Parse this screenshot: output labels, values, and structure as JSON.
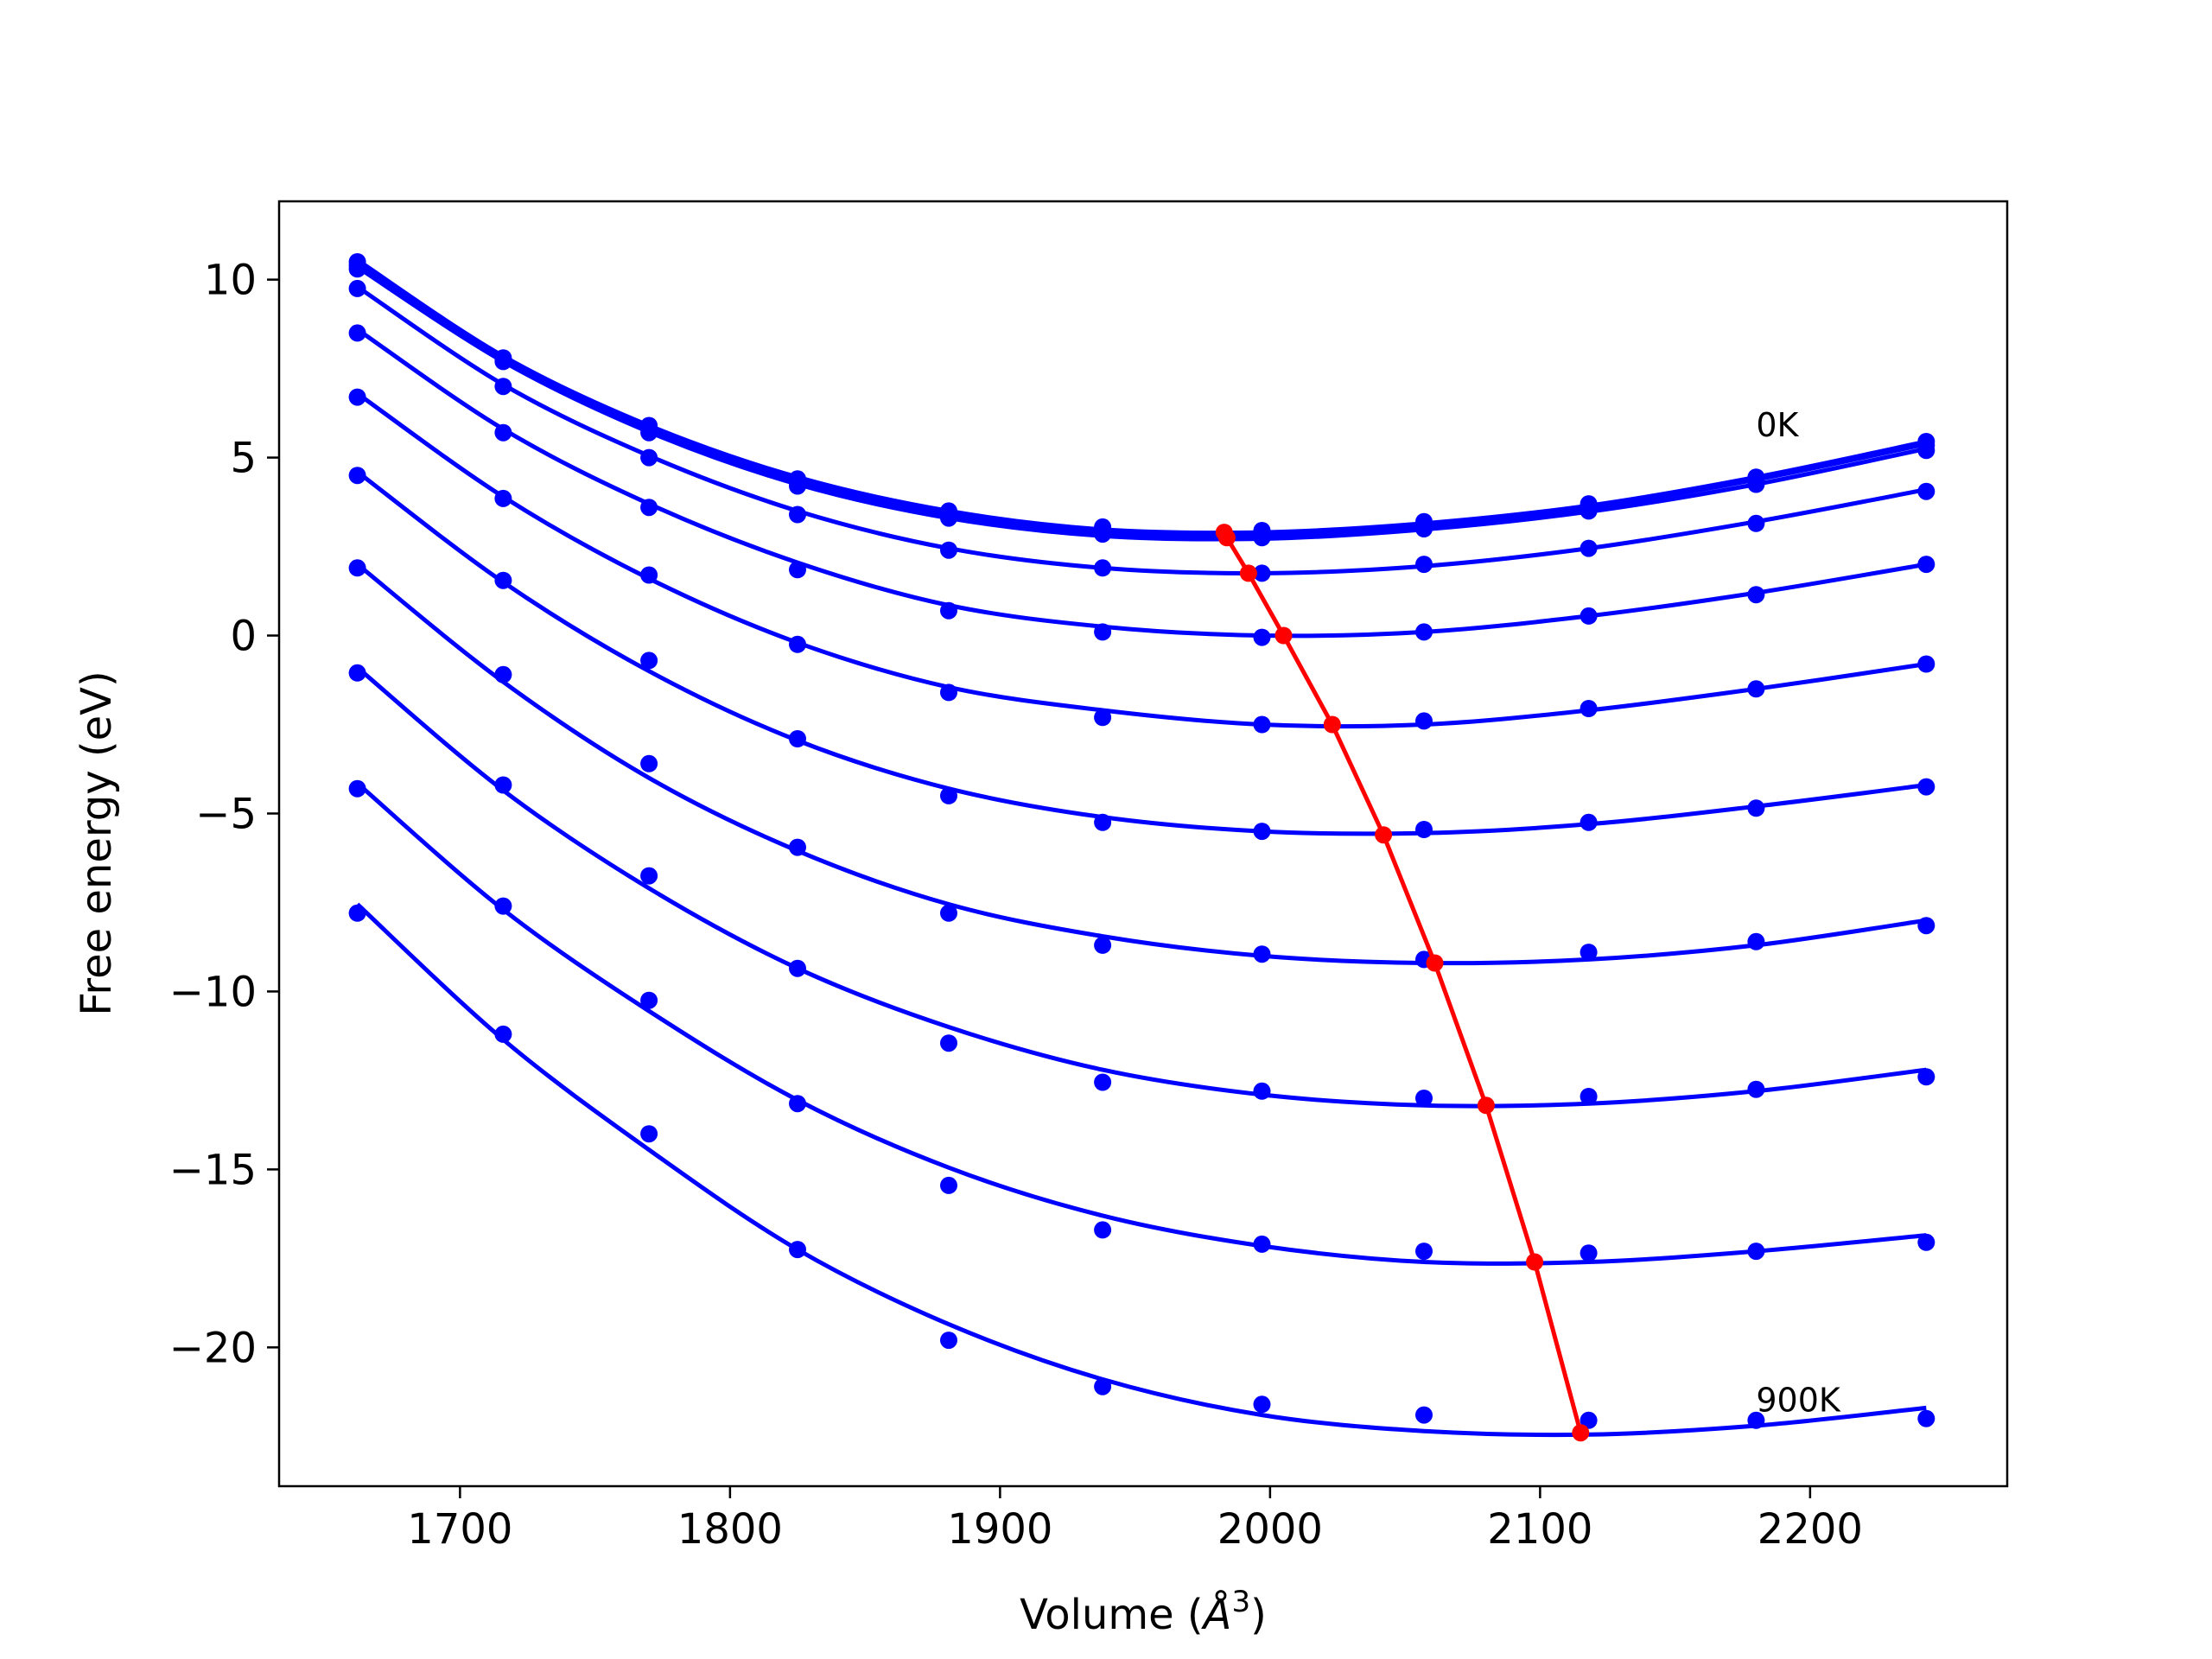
{
  "chart_data": {
    "type": "scatter",
    "xlabel": "Volume (",
    "xlabel_unit": "Å",
    "xlabel_exp": "3",
    "xlabel_close": ")",
    "ylabel": "Free energy (eV)",
    "xlim": [
      1633,
      2273
    ],
    "ylim": [
      -23.9,
      12.2
    ],
    "x_ticks": [
      1700,
      1800,
      1900,
      2000,
      2100,
      2200
    ],
    "x_tick_labels": [
      "1700",
      "1800",
      "1900",
      "2000",
      "2100",
      "2200"
    ],
    "y_ticks": [
      10,
      5,
      0,
      -5,
      -10,
      -15,
      -20
    ],
    "y_tick_labels": [
      "10",
      "5",
      "0",
      "−5",
      "−10",
      "−15",
      "−20"
    ],
    "grid": false,
    "annotations": [
      {
        "text": "0K",
        "x": 2180,
        "y": 5.6
      },
      {
        "text": "900K",
        "x": 2180,
        "y": -21.8
      }
    ],
    "point_color": "#0000ff",
    "fit_color": "#0000ff",
    "min_color": "#ff0000",
    "x": [
      1662,
      1716,
      1770,
      1825,
      1881,
      1938,
      1997,
      2057,
      2118,
      2180,
      2243
    ],
    "series": [
      {
        "label": "0K",
        "points": [
          10.5,
          7.8,
          5.9,
          4.4,
          3.5,
          3.05,
          2.95,
          3.2,
          3.7,
          4.45,
          5.45
        ],
        "fit": [
          10.55,
          7.85,
          5.9,
          4.45,
          3.5,
          2.98,
          2.9,
          3.15,
          3.65,
          4.45,
          5.45
        ]
      },
      {
        "points": [
          10.4,
          7.75,
          5.8,
          4.3,
          3.4,
          2.95,
          2.85,
          3.1,
          3.6,
          4.35,
          5.35
        ],
        "fit": [
          10.45,
          7.75,
          5.8,
          4.33,
          3.4,
          2.9,
          2.82,
          3.07,
          3.58,
          4.38,
          5.38
        ]
      },
      {
        "points": [
          10.3,
          7.7,
          5.7,
          4.2,
          3.3,
          2.85,
          2.75,
          3.0,
          3.5,
          4.25,
          5.2
        ],
        "fit": [
          10.35,
          7.7,
          5.72,
          4.25,
          3.3,
          2.8,
          2.72,
          2.98,
          3.48,
          4.25,
          5.25
        ]
      },
      {
        "points": [
          9.75,
          7.0,
          5.0,
          3.4,
          2.4,
          1.9,
          1.75,
          2.0,
          2.45,
          3.15,
          4.05
        ],
        "fit": [
          9.8,
          7.05,
          5.05,
          3.5,
          2.45,
          1.9,
          1.75,
          1.95,
          2.45,
          3.2,
          4.1
        ]
      },
      {
        "points": [
          8.5,
          5.7,
          3.6,
          1.85,
          0.7,
          0.1,
          -0.05,
          0.1,
          0.55,
          1.15,
          2.0
        ],
        "fit": [
          8.6,
          5.8,
          3.7,
          2.05,
          0.85,
          0.25,
          0.0,
          0.1,
          0.55,
          1.2,
          2.0
        ]
      },
      {
        "points": [
          6.7,
          3.85,
          1.7,
          -0.25,
          -1.6,
          -2.3,
          -2.5,
          -2.4,
          -2.05,
          -1.5,
          -0.8
        ],
        "fit": [
          6.8,
          3.9,
          1.6,
          -0.2,
          -1.45,
          -2.1,
          -2.5,
          -2.5,
          -2.1,
          -1.5,
          -0.8
        ]
      },
      {
        "points": [
          4.5,
          1.55,
          -0.7,
          -2.9,
          -4.5,
          -5.25,
          -5.5,
          -5.45,
          -5.25,
          -4.85,
          -4.25
        ],
        "fit": [
          4.6,
          1.5,
          -1.0,
          -2.95,
          -4.3,
          -5.1,
          -5.5,
          -5.55,
          -5.3,
          -4.8,
          -4.2
        ]
      },
      {
        "points": [
          1.9,
          -1.1,
          -3.6,
          -5.95,
          -7.8,
          -8.7,
          -8.95,
          -9.1,
          -8.9,
          -8.6,
          -8.15
        ],
        "fit": [
          2.0,
          -1.3,
          -4.0,
          -6.05,
          -7.55,
          -8.45,
          -9.0,
          -9.2,
          -9.1,
          -8.7,
          -8.0
        ]
      },
      {
        "points": [
          -1.05,
          -4.2,
          -6.75,
          -9.35,
          -11.45,
          -12.55,
          -12.8,
          -13.0,
          -12.95,
          -12.75,
          -12.4
        ],
        "fit": [
          -0.9,
          -4.35,
          -7.1,
          -9.35,
          -11.0,
          -12.2,
          -12.9,
          -13.2,
          -13.15,
          -12.8,
          -12.2
        ]
      },
      {
        "points": [
          -4.3,
          -7.6,
          -10.25,
          -13.15,
          -15.45,
          -16.7,
          -17.1,
          -17.3,
          -17.35,
          -17.3,
          -17.05
        ],
        "fit": [
          -4.15,
          -7.7,
          -10.55,
          -13.05,
          -14.95,
          -16.3,
          -17.15,
          -17.6,
          -17.6,
          -17.3,
          -16.85
        ]
      },
      {
        "label": "900K",
        "points": [
          -7.8,
          -11.2,
          -14.0,
          -17.25,
          -19.8,
          -21.1,
          -21.6,
          -21.9,
          -22.05,
          -22.05,
          -22.0
        ],
        "fit": [
          -7.55,
          -11.35,
          -14.45,
          -17.25,
          -19.35,
          -20.9,
          -21.9,
          -22.35,
          -22.45,
          -22.2,
          -21.7
        ]
      }
    ],
    "minima": {
      "x": [
        1983,
        1984,
        1992,
        2005,
        2023,
        2042,
        2061,
        2080,
        2098,
        2115
      ],
      "y": [
        2.9,
        2.75,
        1.75,
        0.0,
        -2.5,
        -5.6,
        -9.2,
        -13.2,
        -17.6,
        -22.4
      ]
    }
  }
}
